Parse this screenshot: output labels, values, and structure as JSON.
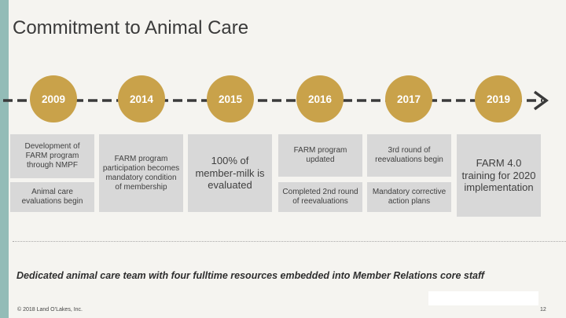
{
  "title": "Commitment to Animal Care",
  "timeline": {
    "years": [
      "2009",
      "2014",
      "2015",
      "2016",
      "2017",
      "2019"
    ]
  },
  "boxes": {
    "b2009a": "Development of\nFARM program\nthrough NMPF",
    "b2009b": "Animal care\nevaluations begin",
    "b2014": "FARM program\nparticipation becomes\nmandatory condition\nof membership",
    "b2015": "100% of\nmember-milk is\nevaluated",
    "b2016a": "FARM program\nupdated",
    "b2016b": "Completed 2nd round\nof reevaluations",
    "b2017a": "3rd round of\nreevaluations begin",
    "b2017b": "Mandatory corrective\naction plans",
    "b2019": "FARM 4.0\ntraining for 2020\nimplementation"
  },
  "statement": "Dedicated animal care team with four fulltime resources embedded into Member Relations core staff",
  "footer": {
    "copyright": "© 2018 Land O’Lakes, Inc.",
    "page_number": "12"
  },
  "colors": {
    "accent": "#c9a24a",
    "sidebar": "#93bcb7",
    "box": "#d8d8d8",
    "timeline": "#3a3a3a"
  }
}
